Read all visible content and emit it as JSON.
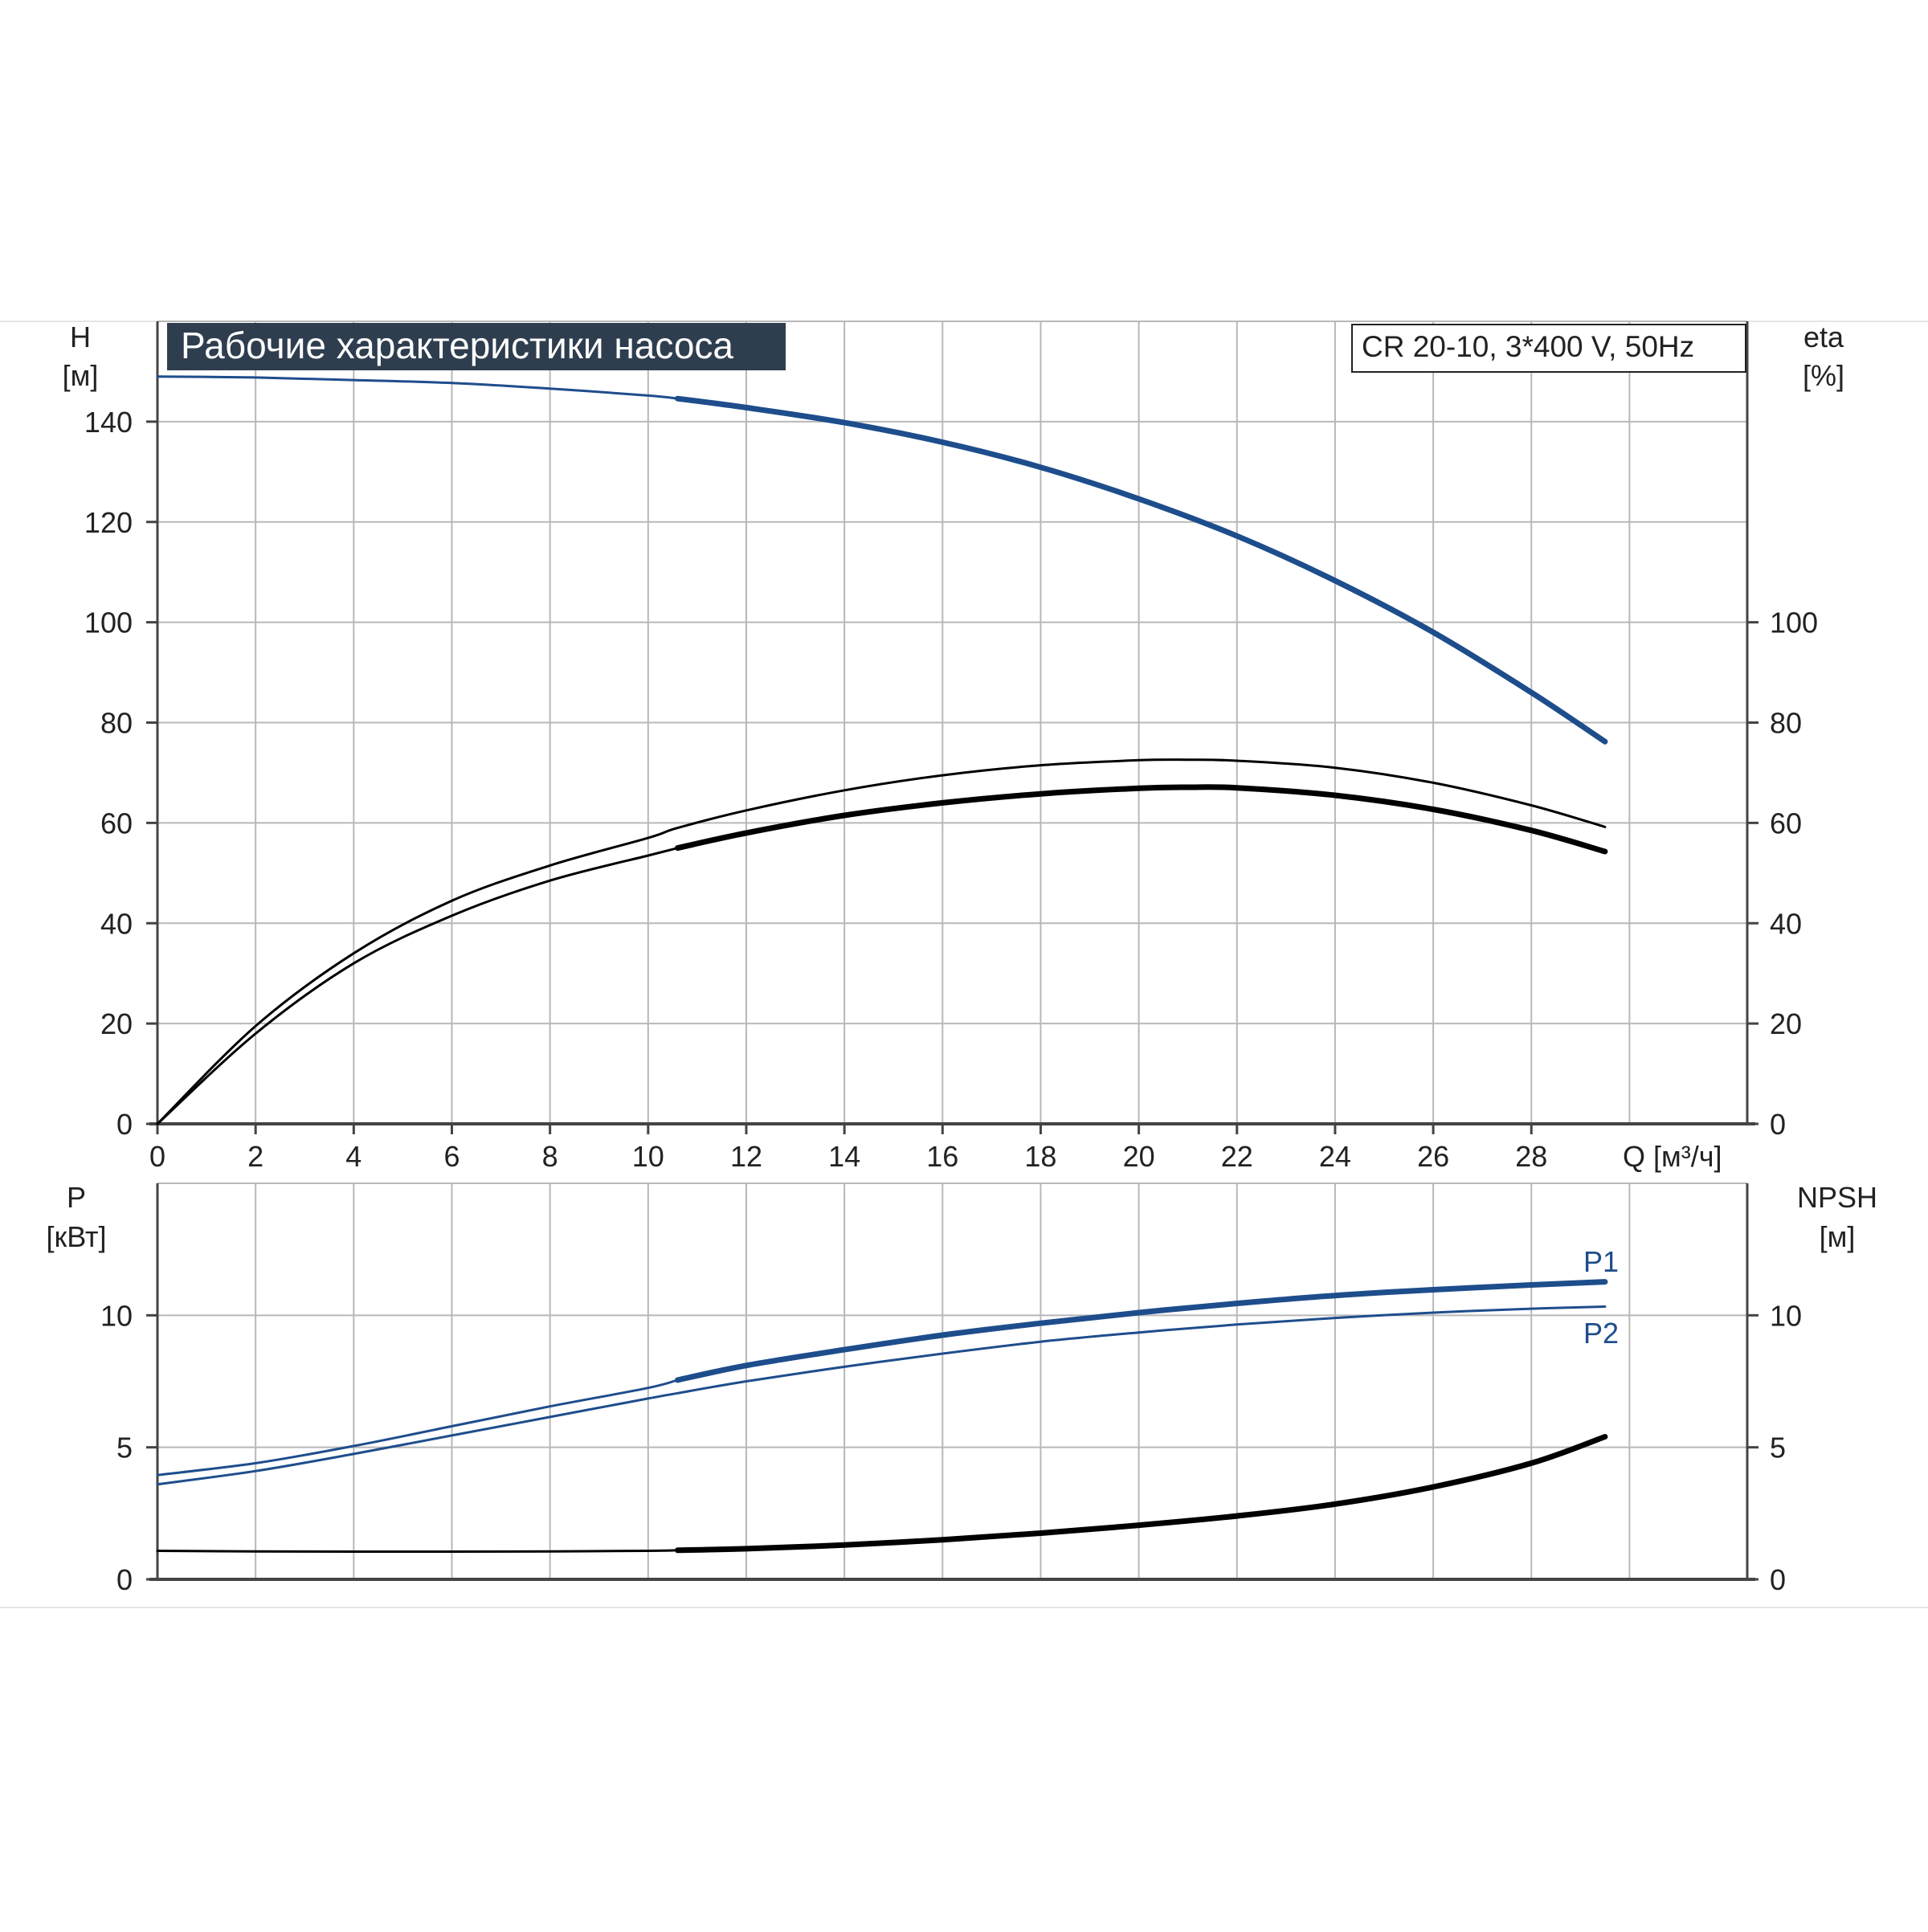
{
  "title": "Рабочие характеристики насоса",
  "pump_model": "CR 20-10, 3*400 V, 50Hz",
  "chart_data": [
    {
      "type": "line",
      "panel": "upper",
      "x_label": "Q [м³/ч]",
      "x_ticks": [
        0,
        2,
        4,
        6,
        8,
        10,
        12,
        14,
        16,
        18,
        20,
        22,
        24,
        26,
        28
      ],
      "xlim": [
        0,
        32.4
      ],
      "left_axis": {
        "label": "H",
        "unit": "[м]",
        "ticks": [
          0,
          20,
          40,
          60,
          80,
          100,
          120,
          140
        ],
        "ylim": [
          0,
          160
        ]
      },
      "right_axis": {
        "label": "eta",
        "unit": "[%]",
        "ticks": [
          0,
          20,
          40,
          60,
          80,
          100
        ],
        "ylim": [
          0,
          160
        ]
      },
      "grid": true,
      "series": [
        {
          "axis": "left",
          "color": "#1e4d8c",
          "x": [
            0,
            2,
            4,
            6,
            8,
            10,
            10.6,
            12,
            14,
            16,
            18,
            20,
            22,
            24,
            26,
            28,
            29.5
          ],
          "y": [
            149,
            148.8,
            148.3,
            147.7,
            146.6,
            145.2,
            144.6,
            142.8,
            139.8,
            135.9,
            130.9,
            124.6,
            117.2,
            108.3,
            98,
            86,
            76.2
          ],
          "thick_from": 10.6
        },
        {
          "axis": "right",
          "color": "#000000",
          "x": [
            0,
            2,
            4,
            6,
            8,
            10,
            10.6,
            12,
            14,
            16,
            18,
            20,
            21,
            22,
            24,
            26,
            28,
            29.5
          ],
          "y": [
            0,
            19.5,
            34,
            44.5,
            51.5,
            57,
            59,
            62.5,
            66.5,
            69.5,
            71.5,
            72.5,
            72.6,
            72.4,
            71,
            68,
            63.5,
            59.2
          ],
          "thick_from": 99
        },
        {
          "axis": "right",
          "color": "#000000",
          "x": [
            0,
            2,
            4,
            6,
            8,
            10,
            10.6,
            12,
            14,
            16,
            18,
            20,
            21,
            22,
            24,
            26,
            28,
            29.5
          ],
          "y": [
            0,
            18,
            32,
            41.5,
            48.5,
            53.5,
            55,
            58,
            61.5,
            64,
            65.8,
            66.9,
            67.1,
            67,
            65.5,
            62.7,
            58.5,
            54.3
          ],
          "thick_from": 10.6
        }
      ]
    },
    {
      "type": "line",
      "panel": "lower",
      "xlim": [
        0,
        32.4
      ],
      "left_axis": {
        "label": "P",
        "unit": "[кВт]",
        "ticks": [
          0,
          5,
          10
        ],
        "ylim": [
          0,
          15
        ]
      },
      "right_axis": {
        "label": "NPSH",
        "unit": "[м]",
        "ticks": [
          0,
          5,
          10
        ],
        "ylim": [
          0,
          15
        ]
      },
      "grid": true,
      "series": [
        {
          "name": "P1",
          "axis": "left",
          "color": "#1e4d8c",
          "x": [
            0,
            2,
            4,
            6,
            8,
            10,
            10.6,
            12,
            14,
            16,
            18,
            20,
            22,
            24,
            26,
            28,
            29.5
          ],
          "y": [
            3.95,
            4.4,
            5.05,
            5.8,
            6.55,
            7.25,
            7.55,
            8.1,
            8.7,
            9.25,
            9.7,
            10.1,
            10.45,
            10.75,
            10.97,
            11.15,
            11.27
          ],
          "thick_from": 10.6
        },
        {
          "name": "P2",
          "axis": "left",
          "color": "#1e4d8c",
          "x": [
            0,
            2,
            4,
            6,
            8,
            10,
            10.6,
            12,
            14,
            16,
            18,
            20,
            22,
            24,
            26,
            28,
            29.5
          ],
          "y": [
            3.6,
            4.1,
            4.75,
            5.45,
            6.15,
            6.85,
            7.05,
            7.5,
            8.05,
            8.55,
            9.0,
            9.35,
            9.65,
            9.9,
            10.1,
            10.25,
            10.33
          ],
          "thick_from": 99
        },
        {
          "axis": "right",
          "color": "#000000",
          "x": [
            0,
            2,
            4,
            6,
            8,
            10,
            10.6,
            12,
            14,
            16,
            18,
            20,
            22,
            24,
            26,
            28,
            29.5
          ],
          "y": [
            1.08,
            1.06,
            1.05,
            1.05,
            1.06,
            1.08,
            1.1,
            1.16,
            1.3,
            1.5,
            1.75,
            2.05,
            2.4,
            2.85,
            3.5,
            4.4,
            5.4
          ],
          "thick_from": 10.6
        }
      ]
    }
  ]
}
